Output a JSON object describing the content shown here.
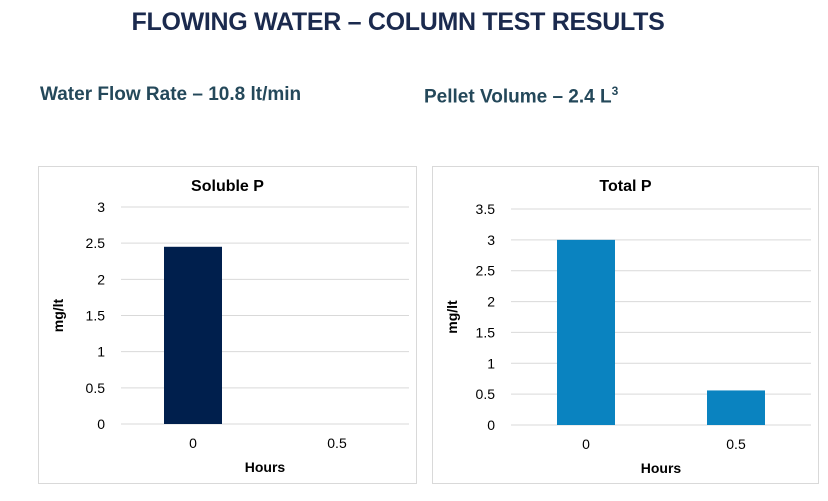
{
  "page": {
    "title": "FLOWING WATER – COLUMN TEST RESULTS",
    "flow_rate": "Water Flow Rate – 10.8 lt/min",
    "pellet_volume": "Pellet Volume – 2.4 L",
    "pellet_volume_sup": "3"
  },
  "colors": {
    "soluble": "#001f4d",
    "total": "#0a83c0",
    "grid": "#d9d9d9"
  },
  "chart_data": [
    {
      "type": "bar",
      "title": "Soluble P",
      "xlabel": "Hours",
      "ylabel": "mg/lt",
      "categories": [
        "0",
        "0.5"
      ],
      "values": [
        2.45,
        0
      ],
      "ylim": [
        0,
        3
      ],
      "yticks": [
        "0",
        "0.5",
        "1",
        "1.5",
        "2",
        "2.5",
        "3"
      ],
      "grid": true
    },
    {
      "type": "bar",
      "title": "Total P",
      "xlabel": "Hours",
      "ylabel": "mg/lt",
      "categories": [
        "0",
        "0.5"
      ],
      "values": [
        3.0,
        0.56
      ],
      "ylim": [
        0,
        3.5
      ],
      "yticks": [
        "0",
        "0.5",
        "1",
        "1.5",
        "2",
        "2.5",
        "3",
        "3.5"
      ],
      "grid": true
    }
  ]
}
